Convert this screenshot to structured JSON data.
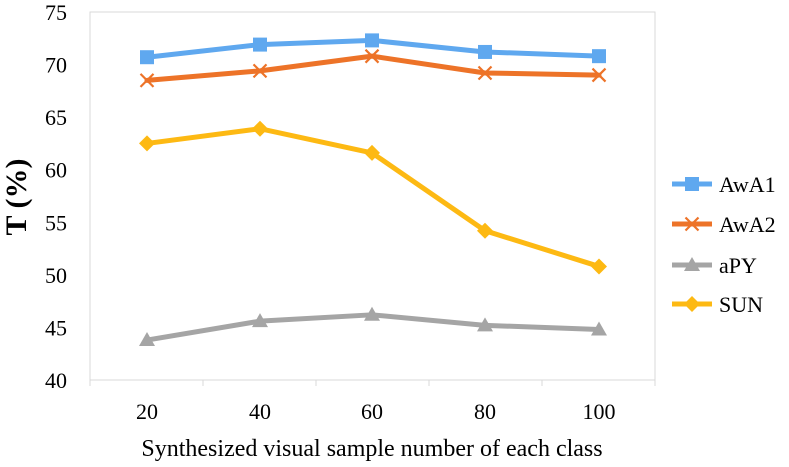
{
  "chart_data": {
    "type": "line",
    "title": "",
    "xlabel": "Synthesized visual sample number of each class",
    "ylabel": "T (%)",
    "x": [
      20,
      40,
      60,
      80,
      100
    ],
    "ylim": [
      40,
      75
    ],
    "yticks": [
      40,
      45,
      50,
      55,
      60,
      65,
      70,
      75
    ],
    "grid": false,
    "legend_position": "right",
    "series": [
      {
        "name": "AwA1",
        "values": [
          70.7,
          71.9,
          72.3,
          71.2,
          70.8
        ],
        "color": "#5fa8ef",
        "marker": "square"
      },
      {
        "name": "AwA2",
        "values": [
          68.5,
          69.4,
          70.8,
          69.2,
          69.0
        ],
        "color": "#ed7328",
        "marker": "x"
      },
      {
        "name": "aPY",
        "values": [
          43.8,
          45.6,
          46.2,
          45.2,
          44.8
        ],
        "color": "#a5a5a5",
        "marker": "triangle"
      },
      {
        "name": "SUN",
        "values": [
          62.5,
          63.9,
          61.6,
          54.2,
          50.8
        ],
        "color": "#fdb913",
        "marker": "diamond"
      }
    ]
  }
}
